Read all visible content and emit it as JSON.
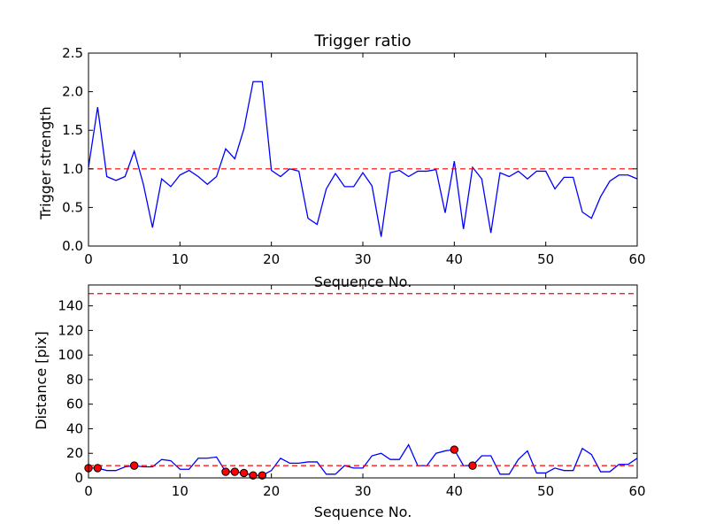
{
  "chart_data": [
    {
      "type": "line",
      "title": "Trigger ratio",
      "xlabel": "Sequence No.",
      "ylabel": "Trigger strength",
      "xlim": [
        0,
        60
      ],
      "ylim": [
        0,
        2.5
      ],
      "xticks": [
        0,
        10,
        20,
        30,
        40,
        50,
        60
      ],
      "yticks": [
        0.0,
        0.5,
        1.0,
        1.5,
        2.0,
        2.5
      ],
      "ytick_labels": [
        "0.0",
        "0.5",
        "1.0",
        "1.5",
        "2.0",
        "2.5"
      ],
      "grid": false,
      "series": [
        {
          "color": "#0000ff",
          "style": "solid",
          "x": [
            0,
            1,
            2,
            3,
            4,
            5,
            6,
            7,
            8,
            9,
            10,
            11,
            12,
            13,
            14,
            15,
            16,
            17,
            18,
            19,
            20,
            21,
            22,
            23,
            24,
            25,
            26,
            27,
            28,
            29,
            30,
            31,
            32,
            33,
            34,
            35,
            36,
            37,
            38,
            39,
            40,
            41,
            42,
            43,
            44,
            45,
            46,
            47,
            48,
            49,
            50,
            51,
            52,
            53,
            54,
            55,
            56,
            57,
            58,
            59,
            60
          ],
          "values": [
            1.02,
            1.8,
            0.9,
            0.85,
            0.9,
            1.23,
            0.8,
            0.24,
            0.87,
            0.77,
            0.92,
            0.98,
            0.9,
            0.8,
            0.9,
            1.26,
            1.13,
            1.52,
            2.13,
            2.13,
            0.98,
            0.9,
            1.0,
            0.97,
            0.36,
            0.28,
            0.74,
            0.94,
            0.77,
            0.77,
            0.95,
            0.78,
            0.12,
            0.95,
            0.98,
            0.9,
            0.97,
            0.97,
            0.99,
            0.43,
            1.1,
            0.22,
            1.02,
            0.87,
            0.17,
            0.95,
            0.9,
            0.97,
            0.87,
            0.97,
            0.97,
            0.74,
            0.89,
            0.89,
            0.44,
            0.36,
            0.64,
            0.84,
            0.92,
            0.92,
            0.87
          ]
        },
        {
          "color": "#ff0000",
          "style": "dashed",
          "x": [
            0,
            60
          ],
          "values": [
            1.0,
            1.0
          ]
        }
      ]
    },
    {
      "type": "line",
      "title": "",
      "xlabel": "Sequence No.",
      "ylabel": "Distance [pix]",
      "xlim": [
        0,
        60
      ],
      "ylim": [
        0,
        157
      ],
      "xticks": [
        0,
        10,
        20,
        30,
        40,
        50,
        60
      ],
      "yticks": [
        0,
        20,
        40,
        60,
        80,
        100,
        120,
        140
      ],
      "ytick_labels": [
        "0",
        "20",
        "40",
        "60",
        "80",
        "100",
        "120",
        "140"
      ],
      "grid": false,
      "series": [
        {
          "color": "#0000ff",
          "style": "solid",
          "x": [
            0,
            1,
            2,
            3,
            4,
            5,
            6,
            7,
            8,
            9,
            10,
            11,
            12,
            13,
            14,
            15,
            16,
            17,
            18,
            19,
            20,
            21,
            22,
            23,
            24,
            25,
            26,
            27,
            28,
            29,
            30,
            31,
            32,
            33,
            34,
            35,
            36,
            37,
            38,
            39,
            40,
            41,
            42,
            43,
            44,
            45,
            46,
            47,
            48,
            49,
            50,
            51,
            52,
            53,
            54,
            55,
            56,
            57,
            58,
            59,
            60
          ],
          "values": [
            8,
            8,
            6,
            6,
            9,
            10,
            9,
            9,
            15,
            14,
            7,
            7,
            16,
            16,
            17,
            5,
            5,
            4,
            2,
            2,
            6,
            16,
            12,
            12,
            13,
            13,
            3,
            3,
            10,
            8,
            8,
            18,
            20,
            15,
            15,
            27,
            10,
            10,
            20,
            22,
            23,
            10,
            10,
            18,
            18,
            3,
            3,
            15,
            22,
            4,
            4,
            8,
            6,
            6,
            24,
            19,
            5,
            5,
            11,
            11,
            16
          ]
        },
        {
          "color": "#ff0000",
          "style": "dashed",
          "x": [
            0,
            60
          ],
          "values": [
            10,
            10
          ]
        },
        {
          "color": "#ff0000",
          "style": "dashed",
          "x": [
            0,
            60
          ],
          "values": [
            150,
            150
          ]
        },
        {
          "color": "#ff0000",
          "style": "markers",
          "x": [
            0,
            1,
            5,
            15,
            16,
            17,
            18,
            19,
            40,
            42
          ],
          "values": [
            8,
            8,
            10,
            5,
            5,
            4,
            2,
            2,
            23,
            10
          ]
        }
      ]
    }
  ]
}
